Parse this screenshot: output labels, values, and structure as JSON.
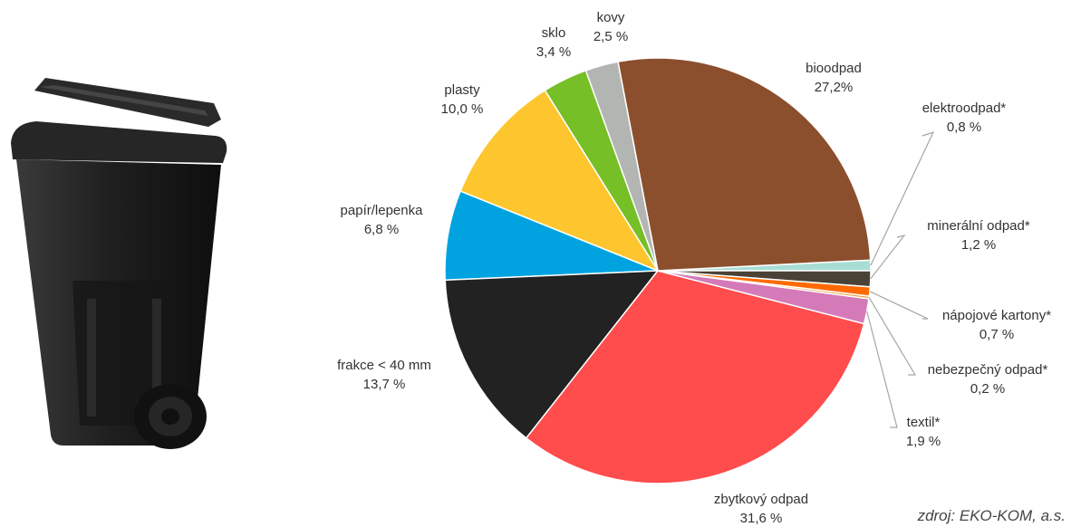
{
  "chart_data": {
    "type": "pie",
    "title": "",
    "start_angle_deg": 0,
    "direction": "counterclockwise",
    "slices": [
      {
        "name": "elektroodpad*",
        "value_label": "0,8 %",
        "value": 0.8,
        "color": "#a8ddd4"
      },
      {
        "name": "bioodpad",
        "value_label": "27,2%",
        "value": 27.2,
        "color": "#8b4f2e"
      },
      {
        "name": "kovy",
        "value_label": "2,5 %",
        "value": 2.5,
        "color": "#b3b5b3"
      },
      {
        "name": "sklo",
        "value_label": "3,4 %",
        "value": 3.4,
        "color": "#76bf26"
      },
      {
        "name": "plasty",
        "value_label": "10,0 %",
        "value": 10.0,
        "color": "#fdc62e"
      },
      {
        "name": "papír/lepenka",
        "value_label": "6,8 %",
        "value": 6.8,
        "color": "#00a3e0"
      },
      {
        "name": "frakce < 40 mm",
        "value_label": "13,7 %",
        "value": 13.7,
        "color": "#222222"
      },
      {
        "name": "zbytkový odpad",
        "value_label": "31,6 %",
        "value": 31.6,
        "color": "#ff4c4c"
      },
      {
        "name": "textil*",
        "value_label": "1,9 %",
        "value": 1.9,
        "color": "#d57ab8"
      },
      {
        "name": "nebezpečný odpad*",
        "value_label": "0,2 %",
        "value": 0.2,
        "color": "#e8a13a"
      },
      {
        "name": "nápojové kartony*",
        "value_label": "0,7 %",
        "value": 0.7,
        "color": "#ff6a00"
      },
      {
        "name": "minerální odpad*",
        "value_label": "1,2 %",
        "value": 1.2,
        "color": "#4a4236"
      }
    ]
  },
  "source_note": "zdroj: EKO-KOM, a.s.",
  "illustration": {
    "icon": "waste-bin-icon",
    "color": "#1a1a1a"
  }
}
